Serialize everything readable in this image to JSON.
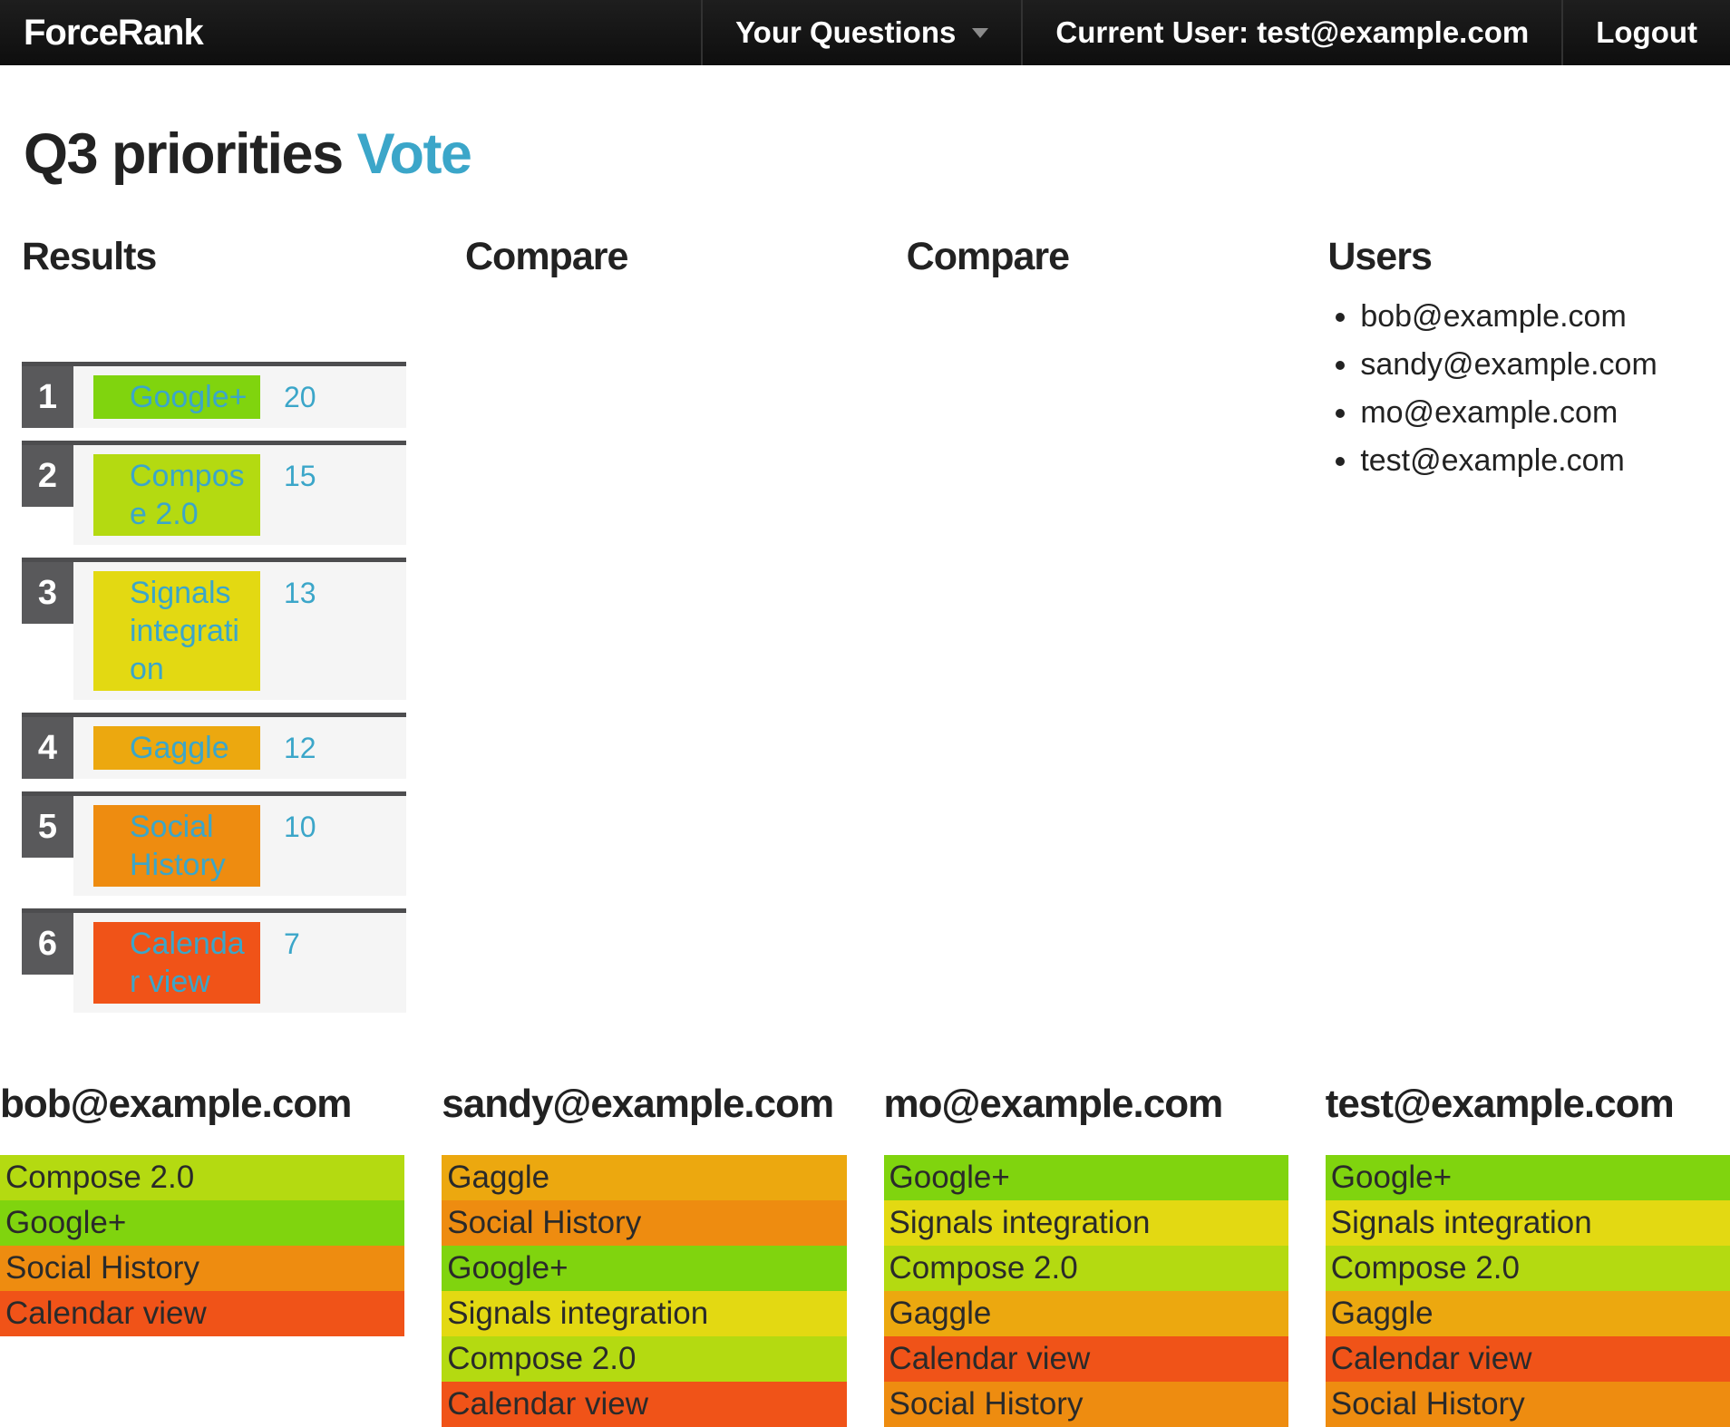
{
  "navbar": {
    "brand": "ForceRank",
    "questions_menu": "Your Questions",
    "current_user": "Current User: test@example.com",
    "logout": "Logout"
  },
  "title": {
    "question": "Q3 priorities",
    "action": "Vote"
  },
  "columns": {
    "results": "Results",
    "compare_left": "Compare",
    "compare_right": "Compare",
    "users": "Users"
  },
  "colors": {
    "link_blue": "#3ba6c9",
    "rank_box_gray": "#59595b",
    "row_background": "#f5f5f5",
    "google_plus": "#80d40e",
    "compose_2_0": "#b4da11",
    "signals_integration": "#e3d912",
    "gaggle": "#eca80f",
    "social_history": "#ee8c10",
    "calendar_view": "#f05318"
  },
  "results": [
    {
      "rank": "1",
      "label": "Google+",
      "votes": "20",
      "color": "#80d40e"
    },
    {
      "rank": "2",
      "label": "Compose 2.0",
      "votes": "15",
      "color": "#b4da11"
    },
    {
      "rank": "3",
      "label": "Signals integration",
      "votes": "13",
      "color": "#e3d912"
    },
    {
      "rank": "4",
      "label": "Gaggle",
      "votes": "12",
      "color": "#eca80f"
    },
    {
      "rank": "5",
      "label": "Social History",
      "votes": "10",
      "color": "#ee8c10"
    },
    {
      "rank": "6",
      "label": "Calendar view",
      "votes": "7",
      "color": "#f05318"
    }
  ],
  "users": [
    "bob@example.com",
    "sandy@example.com",
    "mo@example.com",
    "test@example.com"
  ],
  "ballots": [
    {
      "user": "bob@example.com",
      "rankings": [
        {
          "label": "Compose 2.0",
          "color": "#b4da11"
        },
        {
          "label": "Google+",
          "color": "#80d40e"
        },
        {
          "label": "Social History",
          "color": "#ee8c10"
        },
        {
          "label": "Calendar view",
          "color": "#f05318"
        }
      ]
    },
    {
      "user": "sandy@example.com",
      "rankings": [
        {
          "label": "Gaggle",
          "color": "#eca80f"
        },
        {
          "label": "Social History",
          "color": "#ee8c10"
        },
        {
          "label": "Google+",
          "color": "#80d40e"
        },
        {
          "label": "Signals integration",
          "color": "#e3d912"
        },
        {
          "label": "Compose 2.0",
          "color": "#b4da11"
        },
        {
          "label": "Calendar view",
          "color": "#f05318"
        }
      ]
    },
    {
      "user": "mo@example.com",
      "rankings": [
        {
          "label": "Google+",
          "color": "#80d40e"
        },
        {
          "label": "Signals integration",
          "color": "#e3d912"
        },
        {
          "label": "Compose 2.0",
          "color": "#b4da11"
        },
        {
          "label": "Gaggle",
          "color": "#eca80f"
        },
        {
          "label": "Calendar view",
          "color": "#f05318"
        },
        {
          "label": "Social History",
          "color": "#ee8c10"
        }
      ]
    },
    {
      "user": "test@example.com",
      "rankings": [
        {
          "label": "Google+",
          "color": "#80d40e"
        },
        {
          "label": "Signals integration",
          "color": "#e3d912"
        },
        {
          "label": "Compose 2.0",
          "color": "#b4da11"
        },
        {
          "label": "Gaggle",
          "color": "#eca80f"
        },
        {
          "label": "Calendar view",
          "color": "#f05318"
        },
        {
          "label": "Social History",
          "color": "#ee8c10"
        }
      ]
    }
  ]
}
